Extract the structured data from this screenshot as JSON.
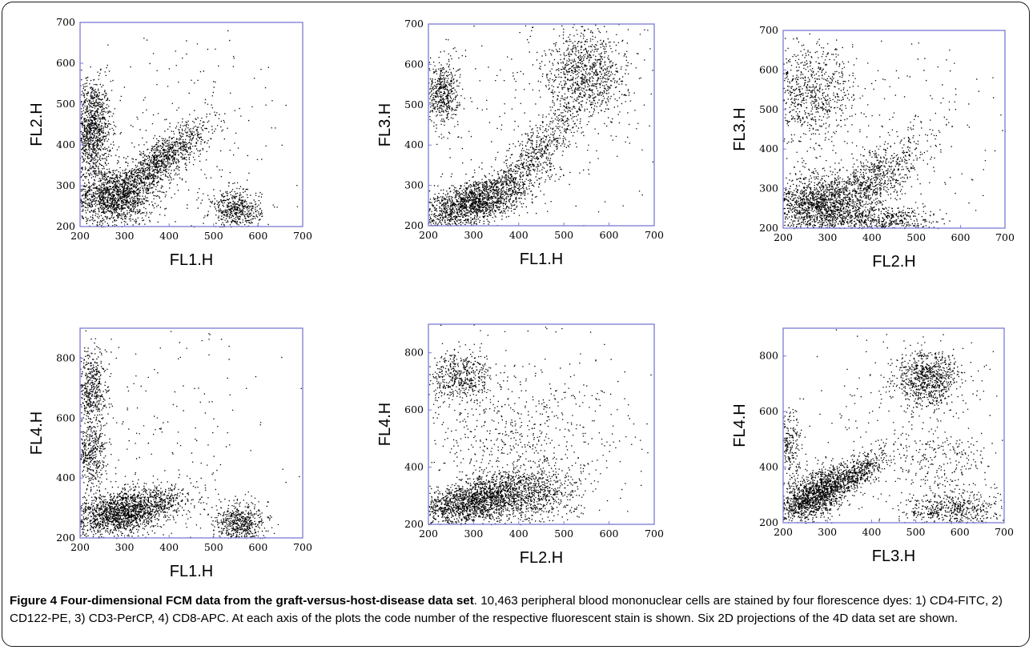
{
  "caption": {
    "label": "Figure 4",
    "title": "Four-dimensional FCM data from the graft-versus-host-disease data set",
    "period": ".",
    "text": " 10,463 peripheral blood mononuclear cells are stained by four florescence dyes: 1) CD4-FITC, 2) CD122-PE, 3) CD3-PerCP, 4) CD8-APC. At each axis of the plots the code number of the respective fluorescent stain is shown. Six 2D projections of the 4D data set are shown."
  },
  "colors": {
    "axis": "#7b7bd6",
    "points": "#000000"
  },
  "chart_data": [
    {
      "type": "scatter",
      "xlabel": "FL1.H",
      "ylabel": "FL2.H",
      "xlim": [
        200,
        700
      ],
      "ylim": [
        200,
        700
      ],
      "xticks": [
        200,
        300,
        400,
        500,
        600,
        700
      ],
      "yticks": [
        200,
        300,
        400,
        500,
        600,
        700
      ],
      "clusters": [
        {
          "cx": 225,
          "cy": 440,
          "sx": 22,
          "sy": 60,
          "n": 1100
        },
        {
          "cx": 275,
          "cy": 275,
          "sx": 45,
          "sy": 35,
          "n": 1400
        },
        {
          "cx": 380,
          "cy": 360,
          "sx": 55,
          "sy": 50,
          "n": 1100,
          "rho": 0.85
        },
        {
          "cx": 550,
          "cy": 240,
          "sx": 28,
          "sy": 25,
          "n": 500
        },
        {
          "cx": 400,
          "cy": 400,
          "sx": 150,
          "sy": 140,
          "n": 280
        }
      ]
    },
    {
      "type": "scatter",
      "xlabel": "FL1.H",
      "ylabel": "FL3.H",
      "xlim": [
        200,
        700
      ],
      "ylim": [
        200,
        700
      ],
      "xticks": [
        200,
        300,
        400,
        500,
        600,
        700
      ],
      "yticks": [
        200,
        300,
        400,
        500,
        600,
        700
      ],
      "clusters": [
        {
          "cx": 230,
          "cy": 530,
          "sx": 18,
          "sy": 40,
          "n": 500
        },
        {
          "cx": 300,
          "cy": 260,
          "sx": 60,
          "sy": 35,
          "n": 1700,
          "rho": 0.6
        },
        {
          "cx": 550,
          "cy": 580,
          "sx": 45,
          "sy": 55,
          "n": 950
        },
        {
          "cx": 440,
          "cy": 380,
          "sx": 50,
          "sy": 60,
          "n": 600,
          "rho": 0.8
        },
        {
          "cx": 450,
          "cy": 450,
          "sx": 150,
          "sy": 150,
          "n": 250
        }
      ]
    },
    {
      "type": "scatter",
      "xlabel": "FL2.H",
      "ylabel": "FL3.H",
      "xlim": [
        200,
        700
      ],
      "ylim": [
        200,
        700
      ],
      "xticks": [
        200,
        300,
        400,
        500,
        600,
        700
      ],
      "yticks": [
        200,
        300,
        400,
        500,
        600,
        700
      ],
      "clusters": [
        {
          "cx": 260,
          "cy": 540,
          "sx": 50,
          "sy": 60,
          "n": 750
        },
        {
          "cx": 280,
          "cy": 260,
          "sx": 55,
          "sy": 40,
          "n": 1500
        },
        {
          "cx": 400,
          "cy": 320,
          "sx": 60,
          "sy": 55,
          "n": 800,
          "rho": 0.75
        },
        {
          "cx": 430,
          "cy": 220,
          "sx": 60,
          "sy": 18,
          "n": 500
        },
        {
          "cx": 400,
          "cy": 450,
          "sx": 160,
          "sy": 150,
          "n": 250
        }
      ]
    },
    {
      "type": "scatter",
      "xlabel": "FL1.H",
      "ylabel": "FL4.H",
      "xlim": [
        200,
        700
      ],
      "ylim": [
        200,
        900
      ],
      "xticks": [
        200,
        300,
        400,
        500,
        600,
        700
      ],
      "yticks": [
        200,
        400,
        600,
        800
      ],
      "clusters": [
        {
          "cx": 225,
          "cy": 690,
          "sx": 18,
          "sy": 70,
          "n": 500
        },
        {
          "cx": 225,
          "cy": 480,
          "sx": 18,
          "sy": 60,
          "n": 400
        },
        {
          "cx": 300,
          "cy": 290,
          "sx": 65,
          "sy": 40,
          "n": 1900,
          "rho": 0.5
        },
        {
          "cx": 560,
          "cy": 250,
          "sx": 30,
          "sy": 35,
          "n": 550
        },
        {
          "cx": 400,
          "cy": 500,
          "sx": 150,
          "sy": 200,
          "n": 220
        }
      ]
    },
    {
      "type": "scatter",
      "xlabel": "FL2.H",
      "ylabel": "FL4.H",
      "xlim": [
        200,
        700
      ],
      "ylim": [
        200,
        900
      ],
      "xticks": [
        200,
        300,
        400,
        500,
        600,
        700
      ],
      "yticks": [
        200,
        400,
        600,
        800
      ],
      "clusters": [
        {
          "cx": 270,
          "cy": 720,
          "sx": 35,
          "sy": 45,
          "n": 500
        },
        {
          "cx": 300,
          "cy": 280,
          "sx": 65,
          "sy": 45,
          "n": 1800,
          "rho": 0.5
        },
        {
          "cx": 430,
          "cy": 300,
          "sx": 50,
          "sy": 55,
          "n": 600
        },
        {
          "cx": 400,
          "cy": 500,
          "sx": 110,
          "sy": 120,
          "n": 500
        },
        {
          "cx": 400,
          "cy": 550,
          "sx": 150,
          "sy": 200,
          "n": 200
        }
      ]
    },
    {
      "type": "scatter",
      "xlabel": "FL3.H",
      "ylabel": "FL4.H",
      "xlim": [
        200,
        700
      ],
      "ylim": [
        200,
        900
      ],
      "xticks": [
        200,
        300,
        400,
        500,
        600,
        700
      ],
      "yticks": [
        200,
        400,
        600,
        800
      ],
      "clusters": [
        {
          "cx": 525,
          "cy": 720,
          "sx": 35,
          "sy": 50,
          "n": 800
        },
        {
          "cx": 270,
          "cy": 300,
          "sx": 45,
          "sy": 50,
          "n": 1500,
          "rho": 0.6
        },
        {
          "cx": 360,
          "cy": 380,
          "sx": 40,
          "sy": 40,
          "n": 500,
          "rho": 0.7
        },
        {
          "cx": 580,
          "cy": 250,
          "sx": 60,
          "sy": 30,
          "n": 500
        },
        {
          "cx": 210,
          "cy": 480,
          "sx": 15,
          "sy": 60,
          "n": 250
        },
        {
          "cx": 560,
          "cy": 420,
          "sx": 60,
          "sy": 70,
          "n": 250
        },
        {
          "cx": 450,
          "cy": 550,
          "sx": 150,
          "sy": 200,
          "n": 200
        }
      ]
    }
  ]
}
